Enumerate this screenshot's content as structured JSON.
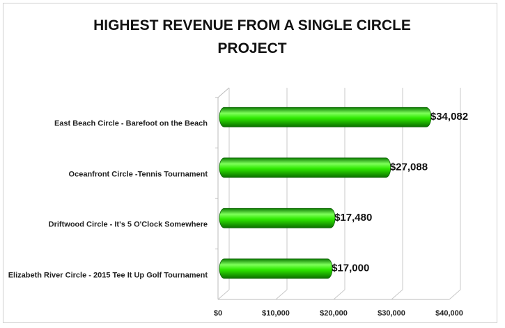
{
  "chart_data": {
    "type": "bar",
    "orientation": "horizontal",
    "title": "HIGHEST REVENUE FROM A SINGLE CIRCLE PROJECT",
    "categories": [
      "East Beach Circle - Barefoot on the Beach",
      "Oceanfront Circle -Tennis Tournament",
      "Driftwood Circle - It's 5 O'Clock Somewhere",
      "Elizabeth River Circle - 2015 Tee It Up Golf Tournament"
    ],
    "values": [
      34082,
      27088,
      17480,
      17000
    ],
    "value_labels": [
      "$34,082",
      "$27,088",
      "$17,480",
      "$17,000"
    ],
    "color": "#22d100",
    "xlim": [
      0,
      40000
    ],
    "xticks": [
      {
        "value": 0,
        "label": "$0"
      },
      {
        "value": 10000,
        "label": "$10,000"
      },
      {
        "value": 20000,
        "label": "$20,000"
      },
      {
        "value": 30000,
        "label": "$30,000"
      },
      {
        "value": 40000,
        "label": "$40,000"
      }
    ],
    "grid": true
  }
}
